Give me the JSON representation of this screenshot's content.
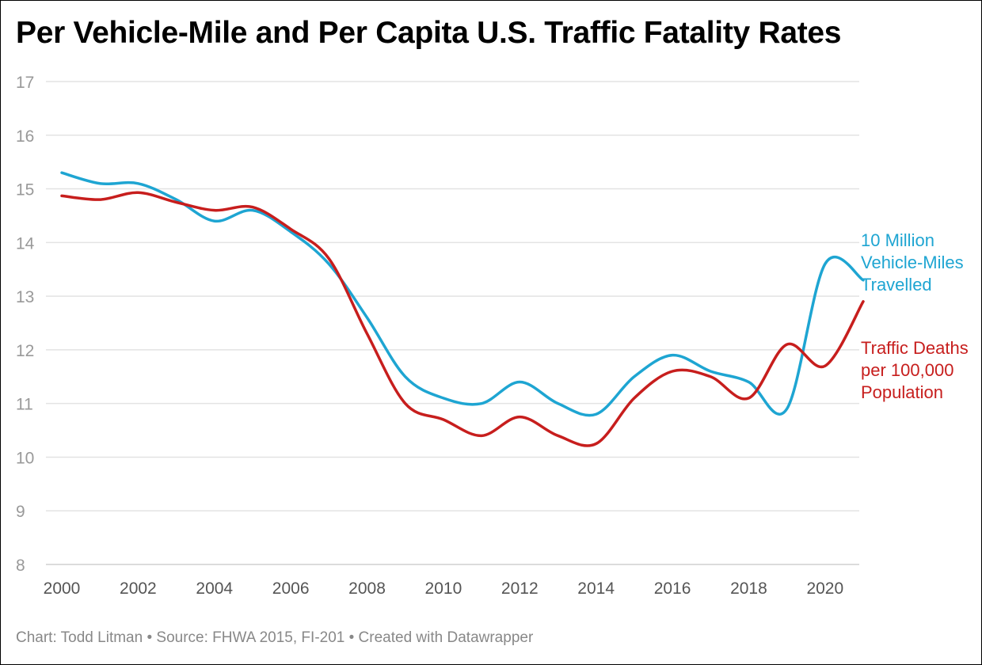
{
  "title": "Per Vehicle-Mile and Per Capita U.S. Traffic Fatality Rates",
  "footer": "Chart: Todd Litman • Source: FHWA 2015, FI-201 • Created with Datawrapper",
  "chart_data": {
    "type": "line",
    "title": "Per Vehicle-Mile and Per Capita U.S. Traffic Fatality Rates",
    "xlabel": "",
    "ylabel": "",
    "ylim": [
      8,
      17
    ],
    "xlim": [
      2000,
      2021
    ],
    "grid": true,
    "yticks": [
      "8",
      "9",
      "10",
      "11",
      "12",
      "13",
      "14",
      "15",
      "16",
      "17"
    ],
    "xticks": [
      "2000",
      "2002",
      "2004",
      "2006",
      "2008",
      "2010",
      "2012",
      "2014",
      "2016",
      "2018",
      "2020"
    ],
    "x": [
      2000,
      2001,
      2002,
      2003,
      2004,
      2005,
      2006,
      2007,
      2008,
      2009,
      2010,
      2011,
      2012,
      2013,
      2014,
      2015,
      2016,
      2017,
      2018,
      2019,
      2020,
      2021
    ],
    "series": [
      {
        "name": "10 Million Vehicle-Miles Travelled",
        "color": "#1ea5d2",
        "values": [
          15.3,
          15.1,
          15.1,
          14.8,
          14.4,
          14.6,
          14.2,
          13.6,
          12.6,
          11.5,
          11.1,
          11.0,
          11.4,
          11.0,
          10.8,
          11.5,
          11.9,
          11.6,
          11.4,
          10.9,
          13.6,
          13.3
        ]
      },
      {
        "name": "Traffic Deaths per 100,000 Population",
        "color": "#c71e1d",
        "values": [
          14.87,
          14.8,
          14.93,
          14.75,
          14.6,
          14.66,
          14.25,
          13.7,
          12.3,
          11.0,
          10.7,
          10.4,
          10.75,
          10.4,
          10.25,
          11.1,
          11.6,
          11.5,
          11.1,
          12.1,
          11.7,
          12.9
        ]
      }
    ],
    "legend": "inline-right"
  }
}
